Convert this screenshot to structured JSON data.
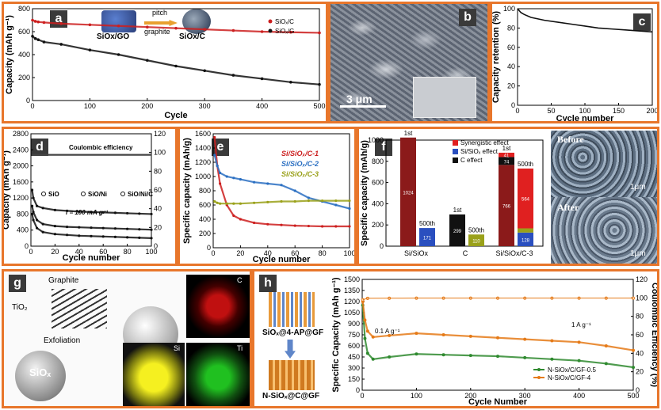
{
  "panel_labels": {
    "a": "a",
    "b": "b",
    "c": "c",
    "d": "d",
    "e": "e",
    "f": "f",
    "g": "g",
    "h": "h"
  },
  "colors": {
    "frame": "#e8762b",
    "red": "#cc1f1f",
    "black": "#111111",
    "blue": "#2a6fc2",
    "olive": "#9aa11a",
    "orange": "#e57a17",
    "green": "#2f8a2f",
    "darkred": "#8b1a1a"
  },
  "panel_a": {
    "inset_left": "SiOx/GO",
    "inset_mid1": "pitch",
    "inset_mid2": "graphite",
    "inset_right": "SiOx/C"
  },
  "panel_b": {
    "scale": "3 μm"
  },
  "panel_g": {
    "graphite": "Graphite",
    "tio2": "TiO₂",
    "exfoliation": "Exfoliation",
    "siox": "SiOₓ",
    "map_c": "C",
    "map_si": "Si",
    "map_ti": "Ti"
  },
  "panel_h_left": {
    "top": "SiOₓ@4-AP@GF",
    "bottom": "N-SiOₓ@C@GF"
  },
  "panel_f_images": {
    "before": "Before",
    "after": "After",
    "scale1": "1μm",
    "scale2": "1μm"
  },
  "chart_data": [
    {
      "id": "a",
      "type": "scatter",
      "xlabel": "Cycle",
      "ylabel": "Capacity (mAh g⁻¹)",
      "xlim": [
        0,
        500
      ],
      "ylim": [
        0,
        800
      ],
      "xticks": [
        0,
        100,
        200,
        300,
        400,
        500
      ],
      "yticks": [
        0,
        200,
        400,
        600,
        800
      ],
      "series": [
        {
          "name": "SiOₓ/C",
          "color": "#cc1f1f",
          "x": [
            0,
            5,
            10,
            20,
            50,
            100,
            150,
            200,
            250,
            300,
            350,
            400,
            450,
            500
          ],
          "y": [
            700,
            690,
            685,
            680,
            670,
            660,
            650,
            640,
            630,
            620,
            610,
            600,
            595,
            590
          ]
        },
        {
          "name": "SiOₓ/G",
          "color": "#111111",
          "x": [
            0,
            5,
            10,
            20,
            50,
            100,
            150,
            200,
            250,
            300,
            350,
            400,
            450,
            500
          ],
          "y": [
            560,
            540,
            530,
            510,
            490,
            440,
            400,
            350,
            300,
            260,
            220,
            190,
            160,
            140
          ]
        }
      ]
    },
    {
      "id": "c",
      "type": "line",
      "xlabel": "Cycle number",
      "ylabel": "Capacity retention (%)",
      "xlim": [
        0,
        200
      ],
      "ylim": [
        0,
        100
      ],
      "xticks": [
        0,
        50,
        100,
        150,
        200
      ],
      "yticks": [
        0,
        20,
        40,
        60,
        80,
        100
      ],
      "series": [
        {
          "color": "#111111",
          "x": [
            0,
            5,
            10,
            20,
            40,
            60,
            80,
            100,
            120,
            140,
            160,
            180,
            200
          ],
          "y": [
            100,
            96,
            94,
            91,
            88,
            86,
            84,
            82,
            80,
            79,
            78,
            77,
            76
          ]
        }
      ]
    },
    {
      "id": "d",
      "type": "scatter",
      "xlabel": "Cycle number",
      "ylabel": "Capacity (mAh g⁻¹)",
      "ylabel2": "Coulombic efficiency",
      "xlim": [
        0,
        100
      ],
      "ylim": [
        0,
        2800
      ],
      "ylim2": [
        0,
        120
      ],
      "xticks": [
        0,
        20,
        40,
        60,
        80,
        100
      ],
      "yticks": [
        0,
        400,
        800,
        1200,
        1600,
        2000,
        2400,
        2800
      ],
      "yticks2": [
        0,
        20,
        40,
        60,
        80,
        100,
        120
      ],
      "annotation": "i = 100 mA g⁻¹",
      "legend_ce": "Coulombic efficiency",
      "series": [
        {
          "name": "SiO",
          "color": "#111111",
          "x": [
            1,
            2,
            5,
            10,
            20,
            30,
            40,
            50,
            60,
            70,
            80,
            90,
            100
          ],
          "y": [
            800,
            650,
            450,
            350,
            300,
            280,
            260,
            250,
            240,
            230,
            220,
            210,
            200
          ]
        },
        {
          "name": "SiO/Ni",
          "color": "#111111",
          "x": [
            1,
            2,
            5,
            10,
            20,
            30,
            40,
            50,
            60,
            70,
            80,
            90,
            100
          ],
          "y": [
            1000,
            850,
            650,
            550,
            500,
            480,
            470,
            460,
            450,
            440,
            430,
            420,
            410
          ]
        },
        {
          "name": "SiO/Ni/C",
          "color": "#111111",
          "x": [
            1,
            2,
            5,
            10,
            20,
            30,
            40,
            50,
            60,
            70,
            80,
            90,
            100
          ],
          "y": [
            1400,
            1200,
            1000,
            950,
            900,
            880,
            860,
            850,
            840,
            830,
            820,
            810,
            800
          ]
        }
      ]
    },
    {
      "id": "e",
      "type": "scatter",
      "xlabel": "Cycle number",
      "ylabel": "Specific capacity (mAh/g)",
      "xlim": [
        0,
        100
      ],
      "ylim": [
        0,
        1600
      ],
      "xticks": [
        0,
        20,
        40,
        60,
        80,
        100
      ],
      "yticks": [
        0,
        200,
        400,
        600,
        800,
        1000,
        1200,
        1400,
        1600
      ],
      "series": [
        {
          "name": "Si/SiOₓ/C-1",
          "color": "#cc1f1f",
          "x": [
            1,
            3,
            5,
            10,
            15,
            20,
            30,
            40,
            50,
            60,
            70,
            80,
            90,
            100
          ],
          "y": [
            1550,
            1150,
            900,
            600,
            450,
            400,
            350,
            330,
            320,
            310,
            305,
            300,
            300,
            300
          ]
        },
        {
          "name": "Si/SiOₓ/C-2",
          "color": "#2a6fc2",
          "x": [
            1,
            3,
            5,
            10,
            15,
            20,
            30,
            40,
            50,
            60,
            70,
            80,
            90,
            100
          ],
          "y": [
            1300,
            1150,
            1050,
            1000,
            980,
            960,
            920,
            900,
            880,
            800,
            700,
            650,
            600,
            550
          ]
        },
        {
          "name": "Si/SiOₓ/C-3",
          "color": "#9aa11a",
          "x": [
            1,
            3,
            5,
            10,
            15,
            20,
            30,
            40,
            50,
            60,
            70,
            80,
            90,
            100
          ],
          "y": [
            650,
            630,
            620,
            620,
            620,
            620,
            630,
            640,
            650,
            650,
            660,
            660,
            660,
            660
          ]
        }
      ]
    },
    {
      "id": "f",
      "type": "bar",
      "ylabel": "Specific capacity (mAh/g)",
      "ylim": [
        0,
        1000
      ],
      "yticks": [
        0,
        200,
        400,
        600,
        800,
        1000
      ],
      "categories": [
        "Si/SiOx",
        "C",
        "Si/SiOx/C-3"
      ],
      "legend": [
        "Synergistic effect",
        "Si/SiOₓ effect",
        "C effect"
      ],
      "bar_labels": {
        "first": "1st",
        "last": "500th"
      },
      "bars": [
        {
          "label": "1st",
          "category": "Si/SiOx",
          "segments": [
            {
              "name": "Si/SiOₓ effect",
              "value": 1024,
              "color": "#8b1a1a"
            }
          ],
          "text": "1024"
        },
        {
          "label": "500th",
          "category": "Si/SiOx",
          "segments": [
            {
              "name": "Si/SiOₓ effect",
              "value": 171,
              "color": "#2a4fbf"
            }
          ],
          "text": "171"
        },
        {
          "label": "1st",
          "category": "C",
          "segments": [
            {
              "name": "C effect",
              "value": 299,
              "color": "#111111"
            }
          ],
          "text": "299"
        },
        {
          "label": "500th",
          "category": "C",
          "segments": [
            {
              "name": "C effect",
              "value": 110,
              "color": "#9aa11a"
            }
          ],
          "text": "110"
        },
        {
          "label": "1st",
          "category": "Si/SiOx/C-3",
          "segments": [
            {
              "name": "Si/SiOₓ effect",
              "value": 766,
              "color": "#8b1a1a"
            },
            {
              "name": "C effect",
              "value": 74,
              "color": "#111111"
            },
            {
              "name": "Synergistic effect",
              "value": 41,
              "color": "#e02020"
            }
          ],
          "texts": [
            "766",
            "74",
            "41"
          ]
        },
        {
          "label": "500th",
          "category": "Si/SiOx/C-3",
          "segments": [
            {
              "name": "Si/SiOₓ effect",
              "value": 128,
              "color": "#2a4fbf"
            },
            {
              "name": "C effect",
              "value": 40,
              "color": "#9aa11a"
            },
            {
              "name": "Synergistic effect",
              "value": 564,
              "color": "#e02020"
            }
          ],
          "texts": [
            "128",
            "",
            "564"
          ]
        }
      ]
    },
    {
      "id": "h",
      "type": "scatter",
      "xlabel": "Cycle Number",
      "ylabel": "Specific Capacity (mAh g⁻¹)",
      "ylabel2": "Coulombic Efficiency (%)",
      "xlim": [
        0,
        500
      ],
      "ylim": [
        0,
        1500
      ],
      "ylim2": [
        0,
        120
      ],
      "xticks": [
        0,
        100,
        200,
        300,
        400,
        500
      ],
      "yticks": [
        0,
        150,
        300,
        450,
        600,
        750,
        900,
        1050,
        1200,
        1350,
        1500
      ],
      "yticks2": [
        0,
        20,
        40,
        60,
        80,
        100,
        120
      ],
      "annotations": [
        "0.1 A g⁻¹",
        "1 A g⁻¹"
      ],
      "series": [
        {
          "name": "N-SiOx/C/GF-0.5",
          "color": "#2f8a2f",
          "x": [
            1,
            5,
            10,
            20,
            50,
            100,
            150,
            200,
            250,
            300,
            350,
            400,
            450,
            500
          ],
          "y": [
            1150,
            700,
            500,
            420,
            450,
            490,
            480,
            470,
            460,
            440,
            420,
            400,
            360,
            310
          ]
        },
        {
          "name": "N-SiOx/C/GF-4",
          "color": "#e57a17",
          "x": [
            1,
            5,
            10,
            20,
            50,
            100,
            150,
            200,
            250,
            300,
            350,
            400,
            450,
            500
          ],
          "y": [
            1200,
            950,
            800,
            720,
            740,
            770,
            750,
            730,
            710,
            690,
            670,
            650,
            600,
            540
          ]
        },
        {
          "name": "CE",
          "color": "#e57a17",
          "axis": "right",
          "x": [
            1,
            10,
            50,
            100,
            150,
            200,
            250,
            300,
            350,
            400,
            450,
            500
          ],
          "y": [
            98,
            99.5,
            99.6,
            99.7,
            99.7,
            99.7,
            99.7,
            99.7,
            99.7,
            99.7,
            99.7,
            99.7
          ]
        }
      ]
    }
  ]
}
